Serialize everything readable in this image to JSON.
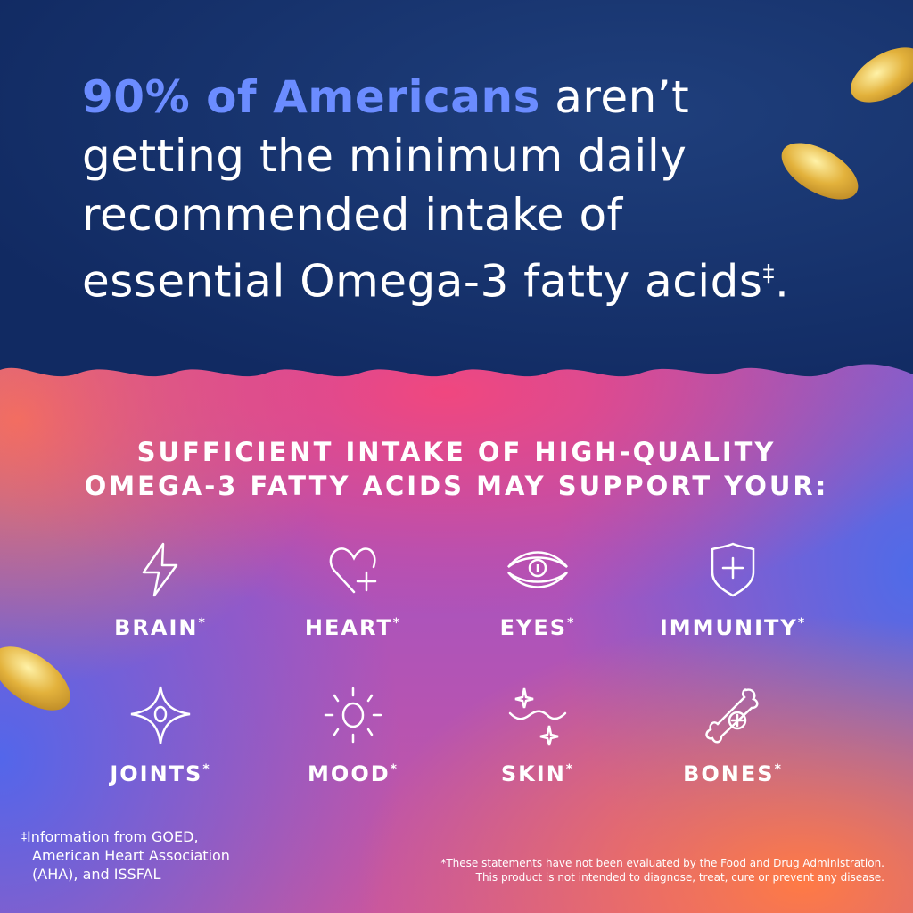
{
  "headline": {
    "highlight": "90% of Americans",
    "line1_rest": " aren’t",
    "line2": "getting the minimum daily",
    "line3": "recommended intake of",
    "line4": "essential Omega-3 fatty acids",
    "line4_mark": "‡",
    "line4_end": "."
  },
  "subheading": {
    "line1": "SUFFICIENT INTAKE OF HIGH-QUALITY",
    "line2": "OMEGA-3 FATTY ACIDS MAY SUPPORT YOUR:"
  },
  "benefits": [
    {
      "label": "BRAIN",
      "mark": "*",
      "icon": "lightning-icon"
    },
    {
      "label": "HEART",
      "mark": "*",
      "icon": "heart-plus-icon"
    },
    {
      "label": "EYES",
      "mark": "*",
      "icon": "eye-icon"
    },
    {
      "label": "IMMUNITY",
      "mark": "*",
      "icon": "shield-plus-icon"
    },
    {
      "label": "JOINTS",
      "mark": "*",
      "icon": "sparkle-joint-icon"
    },
    {
      "label": "MOOD",
      "mark": "*",
      "icon": "sun-icon"
    },
    {
      "label": "SKIN",
      "mark": "*",
      "icon": "wave-sparkle-icon"
    },
    {
      "label": "BONES",
      "mark": "*",
      "icon": "bone-plus-icon"
    }
  ],
  "footnote": {
    "mark": "‡",
    "line1": "Information from GOED,",
    "line2": "American Heart Association",
    "line3": "(AHA), and ISSFAL"
  },
  "disclaimer": {
    "line1": "*These statements have not been evaluated by the Food and Drug Administration.",
    "line2": "This product is not intended to diagnose, treat, cure or prevent any disease."
  },
  "colors": {
    "navy": "#13306a",
    "highlight": "#6b8cff",
    "capsule": "#e3b23c"
  }
}
